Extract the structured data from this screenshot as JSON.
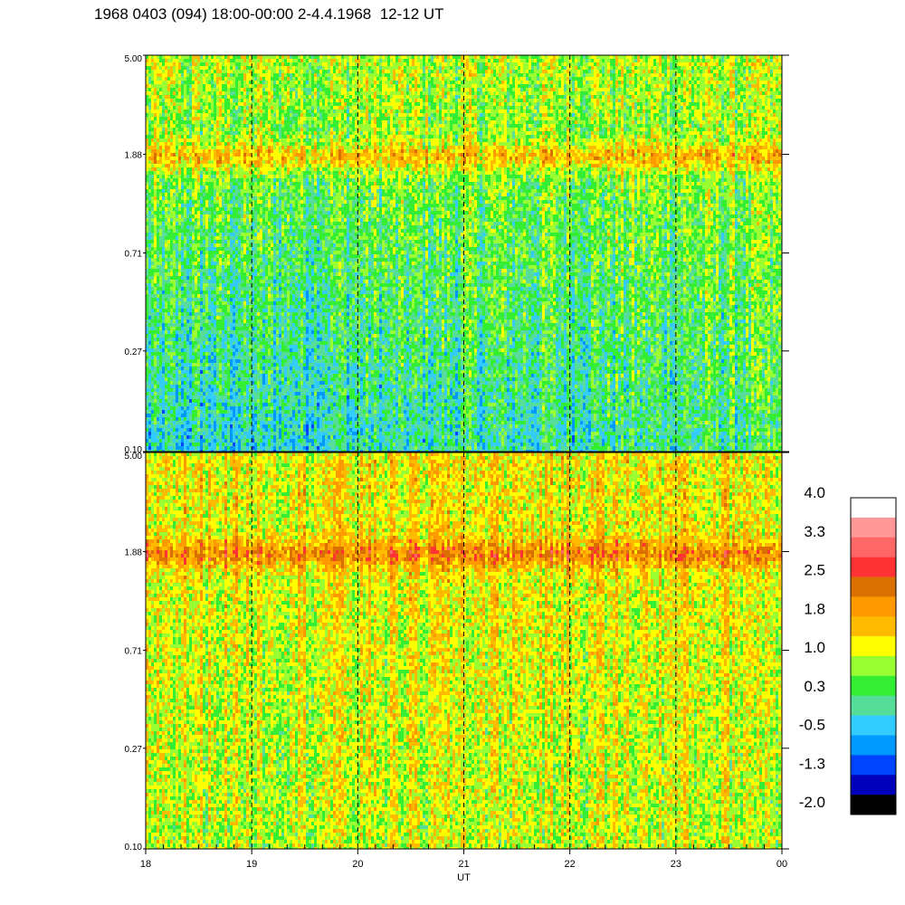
{
  "title": "1968 0403 (094) 18:00-00:00 2-4.4.1968  12-12 UT",
  "chart_data": {
    "type": "heatmap",
    "title": "1968 0403 (094) 18:00-00:00 2-4.4.1968  12-12 UT",
    "xlabel": "UT",
    "x_ticks": [
      "18",
      "19",
      "20",
      "21",
      "22",
      "23",
      "00"
    ],
    "x_range_hours": [
      18,
      24
    ],
    "dashed_hour_lines": [
      19,
      20,
      21,
      22,
      23
    ],
    "y_scale": "log",
    "y_range": [
      0.1,
      5.0
    ],
    "panels": [
      {
        "position": "top",
        "y_ticks": [
          "5.00",
          "1.88",
          "0.71",
          "0.27",
          "0.10"
        ],
        "y_tick_values": [
          5.0,
          1.88,
          0.71,
          0.27,
          0.1
        ],
        "dominant_level": 0.3,
        "bright_band_y": 1.88
      },
      {
        "position": "bottom",
        "y_ticks": [
          "5.00",
          "1.88",
          "0.71",
          "0.27",
          "0.10"
        ],
        "y_tick_values": [
          5.0,
          1.88,
          0.71,
          0.27,
          0.1
        ],
        "dominant_level": 1.2,
        "bright_band_y": 1.88
      }
    ],
    "colorbar": {
      "labels": [
        "4.0",
        "3.3",
        "2.5",
        "1.8",
        "1.0",
        "0.3",
        "-0.5",
        "-1.3",
        "-2.0"
      ],
      "range": [
        -2.0,
        4.0
      ],
      "colors": [
        "#ffffff",
        "#ff9999",
        "#ff6666",
        "#ff3333",
        "#d97000",
        "#ff9900",
        "#ffbb00",
        "#ffff00",
        "#99ff33",
        "#33ee33",
        "#55dd99",
        "#33ccff",
        "#0099ff",
        "#0044ff",
        "#0000bb",
        "#000000"
      ]
    }
  }
}
